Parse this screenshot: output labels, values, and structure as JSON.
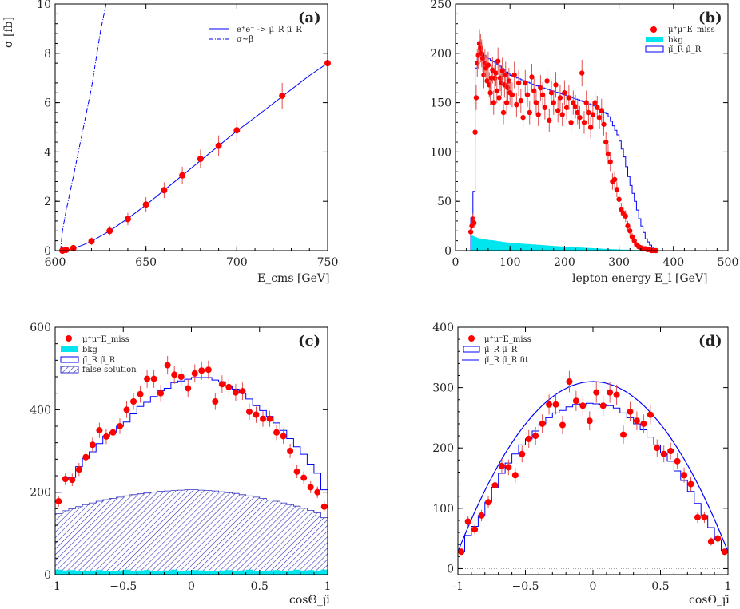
{
  "colors": {
    "data_point": "#ff0000",
    "error_bar": "#e05050",
    "signal_line": "#0000ff",
    "bkg_fill": "#00e5ee",
    "hatch": "#3030c0",
    "axis": "#000000"
  },
  "chart_data": [
    {
      "id": "a",
      "type": "scatter",
      "panel_label": "(a)",
      "xlabel": "E_cms   [GeV]",
      "ylabel": "σ   [fb]",
      "xlim": [
        600,
        750
      ],
      "ylim": [
        0,
        10
      ],
      "xticks": [
        600,
        650,
        700,
        750
      ],
      "yticks": [
        0,
        2,
        4,
        6,
        8,
        10
      ],
      "legend": [
        "e⁺e⁻ -> μ̃_R μ̃_R",
        "σ~β"
      ],
      "legend_position": "top-right",
      "series": [
        {
          "name": "e⁺e⁻ -> μ̃_R μ̃_R",
          "style": "line",
          "x": [
            603,
            606,
            610,
            615,
            620,
            630,
            640,
            650,
            660,
            670,
            680,
            690,
            700,
            710,
            725,
            740,
            750
          ],
          "y": [
            0.0,
            0.02,
            0.09,
            0.22,
            0.38,
            0.8,
            1.3,
            1.85,
            2.45,
            3.05,
            3.65,
            4.25,
            4.85,
            5.4,
            6.25,
            7.1,
            7.6
          ]
        },
        {
          "name": "σ~β",
          "style": "dashdot",
          "x": [
            603,
            604,
            606,
            610,
            615,
            620,
            625,
            628
          ],
          "y": [
            0.0,
            0.8,
            1.6,
            3.0,
            4.8,
            6.6,
            8.9,
            10.0
          ]
        },
        {
          "name": "data",
          "style": "points",
          "x": [
            604,
            606,
            610,
            620,
            630,
            640,
            650,
            660,
            670,
            680,
            690,
            700,
            725,
            750
          ],
          "y": [
            0.0,
            0.03,
            0.1,
            0.38,
            0.8,
            1.28,
            1.87,
            2.45,
            3.05,
            3.72,
            4.25,
            4.88,
            6.28,
            7.6
          ],
          "err": [
            0.02,
            0.03,
            0.05,
            0.15,
            0.2,
            0.25,
            0.3,
            0.32,
            0.35,
            0.38,
            0.42,
            0.45,
            0.52,
            0.6
          ]
        }
      ]
    },
    {
      "id": "b",
      "type": "histogram",
      "panel_label": "(b)",
      "xlabel": "lepton energy E_l   [GeV]",
      "ylabel": "",
      "xlim": [
        0,
        500
      ],
      "ylim": [
        0,
        250
      ],
      "xticks": [
        0,
        100,
        200,
        300,
        400,
        500
      ],
      "yticks": [
        0,
        50,
        100,
        150,
        200,
        250
      ],
      "legend": [
        "μ⁺μ⁻E_miss",
        "bkg",
        "μ̃_R μ̃_R"
      ],
      "legend_position": "top-right",
      "bin_width": 4,
      "signal_shape": [
        [
          26,
          0
        ],
        [
          28,
          20
        ],
        [
          34,
          60
        ],
        [
          36,
          120
        ],
        [
          38,
          185
        ],
        [
          42,
          200
        ],
        [
          48,
          200
        ],
        [
          60,
          195
        ],
        [
          80,
          188
        ],
        [
          100,
          178
        ],
        [
          150,
          167
        ],
        [
          200,
          158
        ],
        [
          250,
          148
        ],
        [
          280,
          138
        ],
        [
          300,
          115
        ],
        [
          310,
          95
        ],
        [
          320,
          70
        ],
        [
          330,
          50
        ],
        [
          340,
          28
        ],
        [
          350,
          12
        ],
        [
          360,
          4
        ],
        [
          370,
          0
        ]
      ],
      "bkg_shape": [
        [
          26,
          0
        ],
        [
          28,
          16
        ],
        [
          40,
          13
        ],
        [
          60,
          11
        ],
        [
          100,
          8
        ],
        [
          150,
          6
        ],
        [
          200,
          4
        ],
        [
          250,
          2.5
        ],
        [
          300,
          1.2
        ],
        [
          350,
          0.3
        ],
        [
          380,
          0
        ]
      ],
      "data_x": [
        28,
        30,
        32,
        34,
        36,
        38,
        40,
        42,
        44,
        46,
        48,
        50,
        52,
        54,
        56,
        58,
        60,
        62,
        64,
        66,
        68,
        70,
        72,
        74,
        76,
        78,
        80,
        82,
        84,
        86,
        88,
        90,
        92,
        94,
        96,
        98,
        100,
        104,
        108,
        112,
        116,
        120,
        124,
        128,
        132,
        136,
        140,
        144,
        148,
        152,
        156,
        160,
        164,
        168,
        172,
        176,
        180,
        184,
        188,
        192,
        196,
        200,
        204,
        208,
        212,
        216,
        220,
        224,
        228,
        232,
        236,
        240,
        244,
        248,
        252,
        256,
        260,
        264,
        268,
        272,
        276,
        280,
        284,
        288,
        292,
        296,
        300,
        304,
        308,
        312,
        316,
        320,
        324,
        328,
        332,
        336,
        340,
        344,
        348,
        352,
        356,
        360,
        364,
        368
      ],
      "data_y": [
        19,
        25,
        32,
        28,
        120,
        155,
        190,
        198,
        210,
        205,
        200,
        195,
        178,
        190,
        185,
        172,
        188,
        168,
        160,
        175,
        183,
        150,
        175,
        180,
        162,
        192,
        155,
        175,
        170,
        182,
        140,
        168,
        178,
        150,
        165,
        172,
        160,
        158,
        178,
        148,
        170,
        152,
        135,
        170,
        158,
        140,
        176,
        162,
        150,
        138,
        165,
        158,
        145,
        172,
        132,
        160,
        150,
        168,
        142,
        155,
        138,
        160,
        145,
        155,
        130,
        150,
        146,
        140,
        135,
        180,
        130,
        150,
        140,
        125,
        138,
        150,
        145,
        135,
        142,
        128,
        110,
        98,
        90,
        70,
        72,
        62,
        52,
        42,
        38,
        35,
        25,
        20,
        14,
        10,
        6,
        4,
        3,
        2,
        2,
        1,
        1,
        0,
        0,
        0
      ]
    },
    {
      "id": "c",
      "type": "histogram",
      "panel_label": "(c)",
      "xlabel": "cosΘ_μ̃",
      "ylabel": "",
      "xlim": [
        -1,
        1
      ],
      "ylim": [
        0,
        600
      ],
      "xticks": [
        -1,
        -0.5,
        0,
        0.5,
        1
      ],
      "yticks": [
        0,
        200,
        400,
        600
      ],
      "legend": [
        "μ⁺μ⁻E_miss",
        "bkg",
        "μ̃_R μ̃_R",
        "false solution"
      ],
      "legend_position": "top-left",
      "bins": 40,
      "signal_values": [
        200,
        232,
        236,
        262,
        282,
        298,
        318,
        336,
        346,
        360,
        370,
        390,
        408,
        418,
        432,
        446,
        452,
        466,
        470,
        474,
        478,
        478,
        478,
        472,
        468,
        458,
        450,
        440,
        426,
        410,
        398,
        384,
        368,
        350,
        330,
        310,
        292,
        268,
        246,
        206
      ],
      "false_values": [
        148,
        155,
        160,
        165,
        170,
        174,
        178,
        182,
        185,
        188,
        191,
        194,
        196,
        198,
        200,
        202,
        203,
        204,
        205,
        206,
        206,
        205,
        204,
        203,
        201,
        199,
        197,
        194,
        191,
        188,
        185,
        181,
        178,
        174,
        170,
        166,
        161,
        156,
        150,
        138
      ],
      "bkg_values": [
        12,
        10,
        11,
        8,
        9,
        10,
        11,
        9,
        8,
        10,
        12,
        9,
        10,
        11,
        8,
        9,
        10,
        12,
        9,
        10,
        11,
        10,
        9,
        8,
        10,
        11,
        9,
        10,
        12,
        8,
        9,
        10,
        11,
        9,
        10,
        12,
        10,
        11,
        9,
        12
      ],
      "data_y": [
        178,
        232,
        230,
        255,
        285,
        315,
        350,
        335,
        345,
        360,
        400,
        420,
        438,
        475,
        475,
        440,
        508,
        485,
        480,
        452,
        488,
        495,
        497,
        420,
        462,
        455,
        442,
        445,
        395,
        388,
        378,
        378,
        345,
        336,
        300,
        250,
        235,
        212,
        200,
        165
      ]
    },
    {
      "id": "d",
      "type": "histogram",
      "panel_label": "(d)",
      "xlabel": "cosΘ_μ̃",
      "ylabel": "",
      "xlim": [
        -1,
        1
      ],
      "ylim": [
        -10,
        400
      ],
      "xticks": [
        -1,
        -0.5,
        0,
        0.5,
        1
      ],
      "yticks": [
        0,
        100,
        200,
        300,
        400
      ],
      "legend": [
        "μ⁺μ⁻E_miss",
        "μ̃_R μ̃_R",
        "μ̃_R μ̃_R fit"
      ],
      "legend_position": "top-left",
      "bins": 40,
      "signal_values": [
        28,
        55,
        70,
        88,
        110,
        135,
        158,
        175,
        190,
        205,
        215,
        228,
        240,
        250,
        258,
        262,
        268,
        272,
        273,
        274,
        273,
        272,
        270,
        266,
        258,
        250,
        240,
        230,
        218,
        205,
        192,
        178,
        162,
        146,
        128,
        108,
        88,
        68,
        48,
        30
      ],
      "fit": [
        28,
        282,
        -254
      ],
      "data_y": [
        28,
        78,
        65,
        88,
        110,
        138,
        170,
        168,
        155,
        190,
        215,
        220,
        240,
        272,
        272,
        238,
        310,
        278,
        270,
        245,
        292,
        270,
        292,
        288,
        222,
        260,
        245,
        240,
        255,
        200,
        190,
        195,
        178,
        155,
        140,
        85,
        85,
        45,
        50,
        28
      ]
    }
  ]
}
